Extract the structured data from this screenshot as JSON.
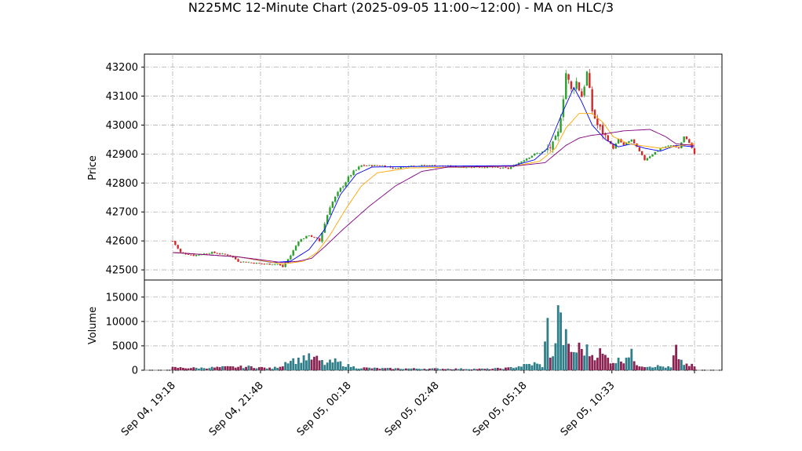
{
  "title": "N225MC 12-Minute Chart (2025-09-05 11:00~12:00) - MA on HLC/3",
  "chart_data": [
    {
      "type": "candlestick",
      "panel": "price",
      "ylabel": "Price",
      "ylim": [
        42465,
        43245
      ],
      "yticks": [
        42500,
        42600,
        42700,
        42800,
        42900,
        43000,
        43100,
        43200
      ],
      "grid": true,
      "n_bars": 200,
      "anchors": [
        [
          0,
          42600
        ],
        [
          3,
          42560
        ],
        [
          8,
          42550
        ],
        [
          15,
          42560
        ],
        [
          22,
          42550
        ],
        [
          25,
          42530
        ],
        [
          35,
          42520
        ],
        [
          40,
          42520
        ],
        [
          42,
          42510
        ],
        [
          45,
          42550
        ],
        [
          48,
          42600
        ],
        [
          52,
          42620
        ],
        [
          56,
          42600
        ],
        [
          60,
          42720
        ],
        [
          64,
          42780
        ],
        [
          68,
          42830
        ],
        [
          72,
          42860
        ],
        [
          80,
          42860
        ],
        [
          85,
          42850
        ],
        [
          90,
          42860
        ],
        [
          100,
          42860
        ],
        [
          110,
          42855
        ],
        [
          120,
          42855
        ],
        [
          128,
          42850
        ],
        [
          132,
          42870
        ],
        [
          138,
          42900
        ],
        [
          142,
          42910
        ],
        [
          145,
          42930
        ],
        [
          147,
          42970
        ],
        [
          149,
          43100
        ],
        [
          150,
          43180
        ],
        [
          152,
          43120
        ],
        [
          154,
          43150
        ],
        [
          156,
          43100
        ],
        [
          158,
          43180
        ],
        [
          160,
          43050
        ],
        [
          162,
          43000
        ],
        [
          165,
          42960
        ],
        [
          168,
          42920
        ],
        [
          170,
          42950
        ],
        [
          172,
          42930
        ],
        [
          175,
          42950
        ],
        [
          180,
          42880
        ],
        [
          183,
          42900
        ],
        [
          186,
          42920
        ],
        [
          190,
          42930
        ],
        [
          193,
          42920
        ],
        [
          195,
          42960
        ],
        [
          197,
          42940
        ],
        [
          199,
          42900
        ]
      ],
      "colors": {
        "up": "#2ca02c",
        "down": "#d62728"
      }
    },
    {
      "type": "line",
      "panel": "price",
      "series": [
        {
          "color": "#0000ff",
          "anchors": [
            [
              0,
              42560
            ],
            [
              25,
              42545
            ],
            [
              38,
              42525
            ],
            [
              45,
              42530
            ],
            [
              52,
              42570
            ],
            [
              58,
              42640
            ],
            [
              64,
              42760
            ],
            [
              70,
              42830
            ],
            [
              76,
              42855
            ],
            [
              100,
              42858
            ],
            [
              130,
              42860
            ],
            [
              138,
              42880
            ],
            [
              143,
              42920
            ],
            [
              148,
              43030
            ],
            [
              153,
              43130
            ],
            [
              156,
              43080
            ],
            [
              160,
              43000
            ],
            [
              165,
              42950
            ],
            [
              170,
              42925
            ],
            [
              175,
              42935
            ],
            [
              180,
              42920
            ],
            [
              186,
              42910
            ],
            [
              192,
              42930
            ],
            [
              199,
              42925
            ]
          ]
        },
        {
          "color": "#ffa500",
          "anchors": [
            [
              0,
              42560
            ],
            [
              25,
              42545
            ],
            [
              42,
              42520
            ],
            [
              50,
              42530
            ],
            [
              55,
              42560
            ],
            [
              60,
              42620
            ],
            [
              66,
              42710
            ],
            [
              72,
              42790
            ],
            [
              78,
              42835
            ],
            [
              90,
              42852
            ],
            [
              130,
              42858
            ],
            [
              140,
              42875
            ],
            [
              146,
              42920
            ],
            [
              150,
              42990
            ],
            [
              155,
              43040
            ],
            [
              160,
              43040
            ],
            [
              164,
              43010
            ],
            [
              168,
              42960
            ],
            [
              174,
              42935
            ],
            [
              186,
              42920
            ],
            [
              199,
              42935
            ]
          ]
        },
        {
          "color": "#800080",
          "anchors": [
            [
              0,
              42560
            ],
            [
              25,
              42545
            ],
            [
              42,
              42525
            ],
            [
              48,
              42530
            ],
            [
              53,
              42540
            ],
            [
              58,
              42580
            ],
            [
              65,
              42640
            ],
            [
              75,
              42720
            ],
            [
              85,
              42790
            ],
            [
              95,
              42840
            ],
            [
              105,
              42855
            ],
            [
              130,
              42858
            ],
            [
              142,
              42870
            ],
            [
              150,
              42930
            ],
            [
              155,
              42955
            ],
            [
              160,
              42965
            ],
            [
              165,
              42970
            ],
            [
              172,
              42980
            ],
            [
              182,
              42985
            ],
            [
              188,
              42960
            ],
            [
              192,
              42935
            ],
            [
              199,
              42930
            ]
          ]
        }
      ]
    },
    {
      "type": "bar",
      "panel": "volume",
      "ylabel": "Volume",
      "ylim": [
        0,
        18500
      ],
      "yticks": [
        0,
        5000,
        10000,
        15000
      ],
      "grid": true,
      "anchors": [
        [
          0,
          600
        ],
        [
          10,
          500
        ],
        [
          20,
          700
        ],
        [
          30,
          800
        ],
        [
          38,
          400
        ],
        [
          42,
          1200
        ],
        [
          44,
          2500
        ],
        [
          48,
          2200
        ],
        [
          50,
          3000
        ],
        [
          55,
          2500
        ],
        [
          58,
          1500
        ],
        [
          62,
          2000
        ],
        [
          66,
          1200
        ],
        [
          70,
          600
        ],
        [
          80,
          400
        ],
        [
          100,
          350
        ],
        [
          120,
          300
        ],
        [
          128,
          500
        ],
        [
          132,
          900
        ],
        [
          138,
          1500
        ],
        [
          141,
          1000
        ],
        [
          143,
          9800
        ],
        [
          144,
          4000
        ],
        [
          145,
          3500
        ],
        [
          146,
          5000
        ],
        [
          147,
          18000
        ],
        [
          148,
          10000
        ],
        [
          149,
          7500
        ],
        [
          150,
          7000
        ],
        [
          151,
          5000
        ],
        [
          153,
          4000
        ],
        [
          155,
          5000
        ],
        [
          158,
          4500
        ],
        [
          160,
          3500
        ],
        [
          163,
          4000
        ],
        [
          165,
          3000
        ],
        [
          168,
          2000
        ],
        [
          172,
          2500
        ],
        [
          175,
          4800
        ],
        [
          176,
          1500
        ],
        [
          180,
          1000
        ],
        [
          186,
          900
        ],
        [
          190,
          600
        ],
        [
          192,
          5000
        ],
        [
          193,
          2000
        ],
        [
          195,
          1500
        ],
        [
          199,
          900
        ]
      ],
      "colors": {
        "up": "#2f7f8a",
        "down": "#8b2252"
      }
    }
  ],
  "x_axis": {
    "tick_labels": [
      "Sep 04, 19:18",
      "Sep 04, 21:48",
      "Sep 05, 00:18",
      "Sep 05, 02:48",
      "Sep 05, 05:18",
      "Sep 05, 10:33"
    ]
  }
}
